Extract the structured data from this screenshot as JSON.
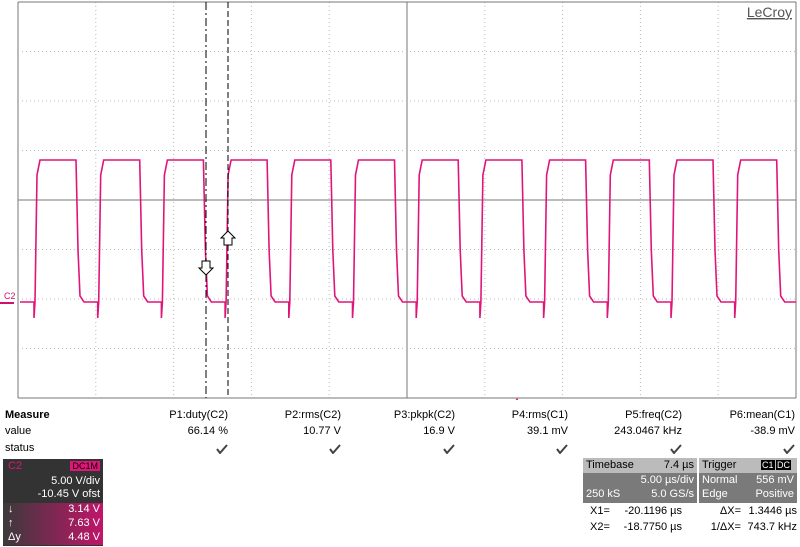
{
  "brand": "LeCroy",
  "trace_label": "C2",
  "measure": {
    "labels": [
      "Measure",
      "value",
      "status"
    ],
    "params": [
      "P1:duty(C2)",
      "P2:rms(C2)",
      "P3:pkpk(C2)",
      "P4:rms(C1)",
      "P5:freq(C2)",
      "P6:mean(C1)"
    ],
    "values": [
      "66.14 %",
      "10.77 V",
      "16.9 V",
      "39.1 mV",
      "243.0467 kHz",
      "-38.9 mV"
    ]
  },
  "channel": {
    "name": "C2",
    "coupling": "DC1M",
    "scale": "5.00 V/div",
    "offset": "-10.45 V ofst",
    "rows": [
      {
        "symbol": "↓",
        "value": "3.14 V"
      },
      {
        "symbol": "↑",
        "value": "7.63 V"
      },
      {
        "symbol": "Δy",
        "value": "4.48 V"
      }
    ]
  },
  "timebase": {
    "title": "Timebase",
    "delay": "7.4 µs",
    "scale": "5.00 µs/div",
    "samples": "250 kS",
    "rate": "5.0 GS/s"
  },
  "trigger": {
    "title": "Trigger",
    "source": "C1",
    "coupling": "DC",
    "mode": "Normal",
    "level": "556 mV",
    "type": "Edge",
    "slope": "Positive"
  },
  "cursors": [
    {
      "label": "X1=",
      "value": "-20.1196 µs",
      "dlabel": "ΔX=",
      "dvalue": "1.3446 µs"
    },
    {
      "label": "X2=",
      "value": "-18.7750 µs",
      "dlabel": "1/ΔX=",
      "dvalue": "743.7 kHz"
    }
  ]
}
